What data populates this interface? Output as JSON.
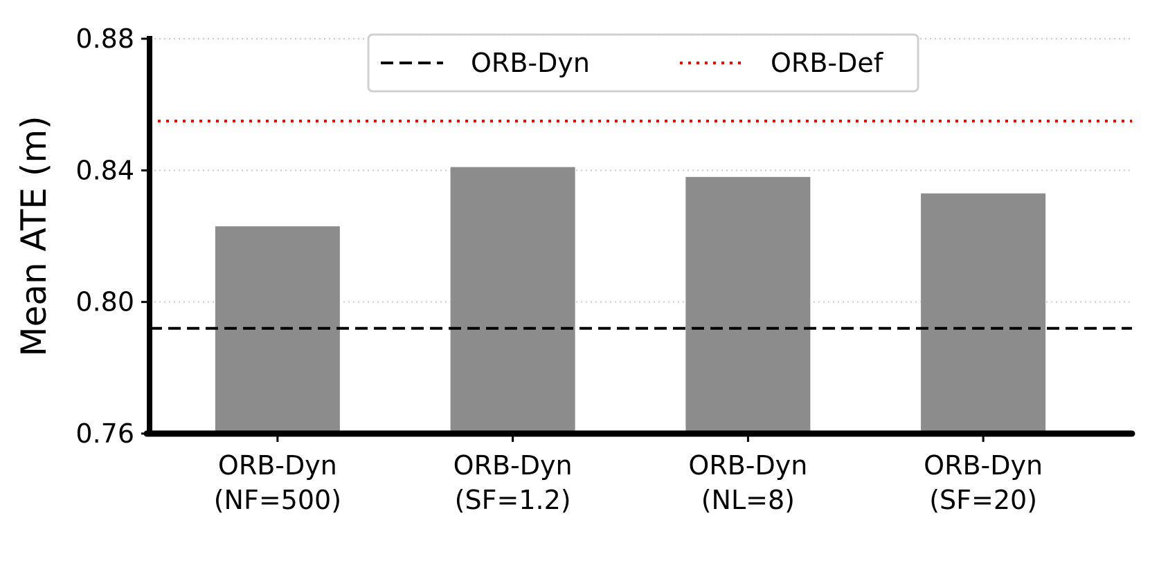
{
  "chart_data": {
    "type": "bar",
    "categories": [
      [
        "ORB-Dyn",
        "(NF=500)"
      ],
      [
        "ORB-Dyn",
        "(SF=1.2)"
      ],
      [
        "ORB-Dyn",
        "(NL=8)"
      ],
      [
        "ORB-Dyn",
        "(SF=20)"
      ]
    ],
    "values": [
      0.823,
      0.841,
      0.838,
      0.833
    ],
    "ylabel": "Mean ATE (m)",
    "xlabel": "",
    "ylim": [
      0.76,
      0.88
    ],
    "yticks": [
      "0.76",
      "0.80",
      "0.84",
      "0.88"
    ],
    "ytick_values": [
      0.76,
      0.8,
      0.84,
      0.88
    ],
    "grid": "horizontal dotted",
    "bar_color": "#8c8c8c",
    "reference_lines": [
      {
        "name": "ORB-Dyn",
        "value": 0.792,
        "style": "dashed",
        "color": "#000000"
      },
      {
        "name": "ORB-Def",
        "value": 0.855,
        "style": "dotted",
        "color": "#ff0000"
      }
    ],
    "legend_position": "top-center"
  }
}
